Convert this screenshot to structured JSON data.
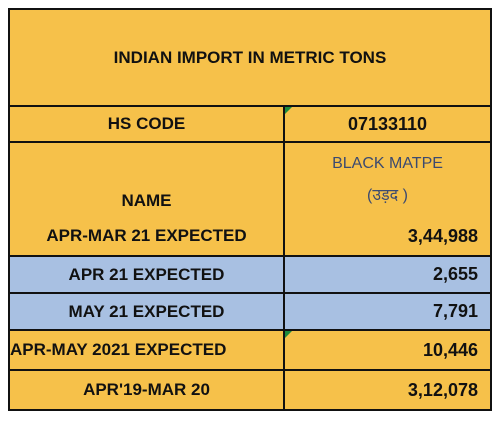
{
  "table": {
    "title": "INDIAN IMPORT IN METRIC TONS",
    "hs_code_label": "HS CODE",
    "hs_code": "07133110",
    "name_label": "NAME",
    "name_lines": [
      "BLACK MATPE",
      "(उड़द )"
    ],
    "rows": [
      [
        "APR-MAR 21 EXPECTED",
        "3,44,988"
      ],
      [
        "APR 21 EXPECTED",
        "2,655"
      ],
      [
        "MAY 21 EXPECTED",
        "7,791"
      ],
      [
        "APR-MAY 2021 EXPECTED",
        "10,446"
      ],
      [
        "APR'19-MAR 20",
        "3,12,078"
      ]
    ]
  }
}
